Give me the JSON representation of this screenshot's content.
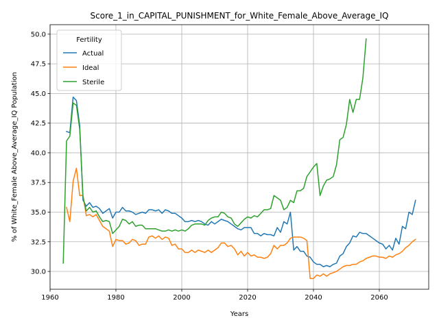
{
  "chart_data": {
    "type": "line",
    "title": "Score_1_in_CAPITAL_PUNISHMENT_for_White_Female_Above_Average_IQ",
    "xlabel": "Years",
    "ylabel": "% of White_Female Above_Average_IQ Population",
    "xlim": [
      1960,
      2075
    ],
    "ylim": [
      28.5,
      50.8
    ],
    "xticks": [
      1960,
      1980,
      2000,
      2020,
      2040,
      2060
    ],
    "yticks": [
      30.0,
      32.5,
      35.0,
      37.5,
      40.0,
      42.5,
      45.0,
      47.5,
      50.0
    ],
    "grid": true,
    "legend": {
      "title": "Fertility",
      "placement": "upper-left"
    },
    "series": [
      {
        "name": "Actual",
        "color": "#1f77b4",
        "points": [
          [
            1965,
            41.8
          ],
          [
            1966,
            41.7
          ],
          [
            1967,
            44.7
          ],
          [
            1968,
            44.4
          ],
          [
            1969,
            42.3
          ],
          [
            1970,
            36.0
          ],
          [
            1971,
            35.5
          ],
          [
            1972,
            35.8
          ],
          [
            1973,
            35.4
          ],
          [
            1974,
            35.5
          ],
          [
            1975,
            35.3
          ],
          [
            1976,
            34.9
          ],
          [
            1977,
            35.1
          ],
          [
            1978,
            35.3
          ],
          [
            1979,
            34.5
          ],
          [
            1980,
            35.0
          ],
          [
            1981,
            35.0
          ],
          [
            1982,
            35.4
          ],
          [
            1983,
            35.1
          ],
          [
            1984,
            35.1
          ],
          [
            1985,
            35.0
          ],
          [
            1986,
            34.8
          ],
          [
            1987,
            34.9
          ],
          [
            1988,
            35.0
          ],
          [
            1989,
            34.9
          ],
          [
            1990,
            35.2
          ],
          [
            1991,
            35.2
          ],
          [
            1992,
            35.1
          ],
          [
            1993,
            35.2
          ],
          [
            1994,
            34.9
          ],
          [
            1995,
            35.2
          ],
          [
            1996,
            35.1
          ],
          [
            1997,
            34.9
          ],
          [
            1998,
            34.9
          ],
          [
            1999,
            34.7
          ],
          [
            2000,
            34.5
          ],
          [
            2001,
            34.2
          ],
          [
            2002,
            34.2
          ],
          [
            2003,
            34.3
          ],
          [
            2004,
            34.2
          ],
          [
            2005,
            34.3
          ],
          [
            2006,
            34.2
          ],
          [
            2007,
            34.0
          ],
          [
            2008,
            33.9
          ],
          [
            2009,
            34.2
          ],
          [
            2010,
            34.0
          ],
          [
            2011,
            34.2
          ],
          [
            2012,
            34.4
          ],
          [
            2013,
            34.3
          ],
          [
            2014,
            34.2
          ],
          [
            2015,
            34.0
          ],
          [
            2016,
            33.8
          ],
          [
            2017,
            33.6
          ],
          [
            2018,
            33.5
          ],
          [
            2019,
            33.7
          ],
          [
            2020,
            33.7
          ],
          [
            2021,
            33.7
          ],
          [
            2022,
            33.2
          ],
          [
            2023,
            33.2
          ],
          [
            2024,
            33.0
          ],
          [
            2025,
            33.2
          ],
          [
            2026,
            33.1
          ],
          [
            2027,
            33.1
          ],
          [
            2028,
            33.0
          ],
          [
            2029,
            33.7
          ],
          [
            2030,
            33.3
          ],
          [
            2031,
            34.2
          ],
          [
            2032,
            34.0
          ],
          [
            2033,
            35.0
          ],
          [
            2034,
            31.8
          ],
          [
            2035,
            32.1
          ],
          [
            2036,
            31.7
          ],
          [
            2037,
            31.7
          ],
          [
            2038,
            31.3
          ],
          [
            2039,
            31.2
          ],
          [
            2040,
            30.8
          ],
          [
            2041,
            30.6
          ],
          [
            2042,
            30.6
          ],
          [
            2043,
            30.4
          ],
          [
            2044,
            30.5
          ],
          [
            2045,
            30.4
          ],
          [
            2046,
            30.6
          ],
          [
            2047,
            30.7
          ],
          [
            2048,
            31.3
          ],
          [
            2049,
            31.5
          ],
          [
            2050,
            32.1
          ],
          [
            2051,
            32.4
          ],
          [
            2052,
            33.0
          ],
          [
            2053,
            32.9
          ],
          [
            2054,
            33.3
          ],
          [
            2055,
            33.2
          ],
          [
            2056,
            33.2
          ],
          [
            2057,
            33.0
          ],
          [
            2058,
            32.8
          ],
          [
            2059,
            32.6
          ],
          [
            2060,
            32.4
          ],
          [
            2061,
            32.3
          ],
          [
            2062,
            31.9
          ],
          [
            2063,
            32.2
          ],
          [
            2064,
            31.8
          ],
          [
            2065,
            32.8
          ],
          [
            2066,
            32.3
          ],
          [
            2067,
            33.8
          ],
          [
            2068,
            33.6
          ],
          [
            2069,
            35.0
          ],
          [
            2070,
            34.8
          ],
          [
            2071,
            36.0
          ]
        ]
      },
      {
        "name": "Ideal",
        "color": "#ff7f0e",
        "points": [
          [
            1965,
            35.4
          ],
          [
            1966,
            34.2
          ],
          [
            1967,
            37.6
          ],
          [
            1968,
            38.7
          ],
          [
            1969,
            36.4
          ],
          [
            1970,
            36.4
          ],
          [
            1971,
            34.7
          ],
          [
            1972,
            34.8
          ],
          [
            1973,
            34.6
          ],
          [
            1974,
            34.8
          ],
          [
            1975,
            34.3
          ],
          [
            1976,
            33.8
          ],
          [
            1977,
            33.6
          ],
          [
            1978,
            33.4
          ],
          [
            1979,
            32.1
          ],
          [
            1980,
            32.7
          ],
          [
            1981,
            32.6
          ],
          [
            1982,
            32.6
          ],
          [
            1983,
            32.3
          ],
          [
            1984,
            32.4
          ],
          [
            1985,
            32.7
          ],
          [
            1986,
            32.6
          ],
          [
            1987,
            32.2
          ],
          [
            1988,
            32.3
          ],
          [
            1989,
            32.3
          ],
          [
            1990,
            32.9
          ],
          [
            1991,
            33.0
          ],
          [
            1992,
            32.8
          ],
          [
            1993,
            33.0
          ],
          [
            1994,
            32.7
          ],
          [
            1995,
            32.9
          ],
          [
            1996,
            32.8
          ],
          [
            1997,
            32.2
          ],
          [
            1998,
            32.3
          ],
          [
            1999,
            31.9
          ],
          [
            2000,
            31.9
          ],
          [
            2001,
            31.6
          ],
          [
            2002,
            31.6
          ],
          [
            2003,
            31.8
          ],
          [
            2004,
            31.6
          ],
          [
            2005,
            31.8
          ],
          [
            2006,
            31.7
          ],
          [
            2007,
            31.6
          ],
          [
            2008,
            31.8
          ],
          [
            2009,
            31.6
          ],
          [
            2010,
            31.8
          ],
          [
            2011,
            32.0
          ],
          [
            2012,
            32.4
          ],
          [
            2013,
            32.4
          ],
          [
            2014,
            32.1
          ],
          [
            2015,
            32.2
          ],
          [
            2016,
            31.9
          ],
          [
            2017,
            31.4
          ],
          [
            2018,
            31.7
          ],
          [
            2019,
            31.3
          ],
          [
            2020,
            31.6
          ],
          [
            2021,
            31.3
          ],
          [
            2022,
            31.4
          ],
          [
            2023,
            31.2
          ],
          [
            2024,
            31.2
          ],
          [
            2025,
            31.1
          ],
          [
            2026,
            31.2
          ],
          [
            2027,
            31.5
          ],
          [
            2028,
            32.2
          ],
          [
            2029,
            31.9
          ],
          [
            2030,
            32.2
          ],
          [
            2031,
            32.2
          ],
          [
            2032,
            32.4
          ],
          [
            2033,
            32.8
          ],
          [
            2034,
            32.9
          ],
          [
            2035,
            32.9
          ],
          [
            2036,
            32.9
          ],
          [
            2037,
            32.8
          ],
          [
            2038,
            32.6
          ],
          [
            2039,
            29.4
          ],
          [
            2040,
            29.4
          ],
          [
            2041,
            29.7
          ],
          [
            2042,
            29.6
          ],
          [
            2043,
            29.8
          ],
          [
            2044,
            29.6
          ],
          [
            2045,
            29.8
          ],
          [
            2046,
            29.9
          ],
          [
            2047,
            30.0
          ],
          [
            2048,
            30.2
          ],
          [
            2049,
            30.4
          ],
          [
            2050,
            30.5
          ],
          [
            2051,
            30.5
          ],
          [
            2052,
            30.6
          ],
          [
            2053,
            30.6
          ],
          [
            2054,
            30.8
          ],
          [
            2055,
            30.9
          ],
          [
            2056,
            31.1
          ],
          [
            2057,
            31.2
          ],
          [
            2058,
            31.3
          ],
          [
            2059,
            31.3
          ],
          [
            2060,
            31.2
          ],
          [
            2061,
            31.2
          ],
          [
            2062,
            31.1
          ],
          [
            2063,
            31.3
          ],
          [
            2064,
            31.2
          ],
          [
            2065,
            31.4
          ],
          [
            2066,
            31.5
          ],
          [
            2067,
            31.7
          ],
          [
            2068,
            32.0
          ],
          [
            2069,
            32.2
          ],
          [
            2070,
            32.5
          ],
          [
            2071,
            32.7
          ]
        ]
      },
      {
        "name": "Sterile",
        "color": "#2ca02c",
        "points": [
          [
            1964,
            30.7
          ],
          [
            1965,
            41.0
          ],
          [
            1966,
            41.4
          ],
          [
            1967,
            44.2
          ],
          [
            1968,
            44.0
          ],
          [
            1969,
            42.0
          ],
          [
            1970,
            36.3
          ],
          [
            1971,
            35.1
          ],
          [
            1972,
            35.4
          ],
          [
            1973,
            35.0
          ],
          [
            1974,
            35.1
          ],
          [
            1975,
            34.6
          ],
          [
            1976,
            34.2
          ],
          [
            1977,
            34.3
          ],
          [
            1978,
            34.2
          ],
          [
            1979,
            33.2
          ],
          [
            1980,
            33.5
          ],
          [
            1981,
            33.8
          ],
          [
            1982,
            34.4
          ],
          [
            1983,
            34.3
          ],
          [
            1984,
            34.0
          ],
          [
            1985,
            34.2
          ],
          [
            1986,
            33.8
          ],
          [
            1987,
            33.9
          ],
          [
            1988,
            33.9
          ],
          [
            1989,
            33.6
          ],
          [
            1990,
            33.6
          ],
          [
            1991,
            33.6
          ],
          [
            1992,
            33.6
          ],
          [
            1993,
            33.5
          ],
          [
            1994,
            33.4
          ],
          [
            1995,
            33.4
          ],
          [
            1996,
            33.5
          ],
          [
            1997,
            33.4
          ],
          [
            1998,
            33.5
          ],
          [
            1999,
            33.4
          ],
          [
            2000,
            33.5
          ],
          [
            2001,
            33.4
          ],
          [
            2002,
            33.6
          ],
          [
            2003,
            33.9
          ],
          [
            2004,
            34.0
          ],
          [
            2005,
            34.0
          ],
          [
            2006,
            34.0
          ],
          [
            2007,
            33.9
          ],
          [
            2008,
            34.3
          ],
          [
            2009,
            34.5
          ],
          [
            2010,
            34.6
          ],
          [
            2011,
            34.6
          ],
          [
            2012,
            35.0
          ],
          [
            2013,
            34.9
          ],
          [
            2014,
            34.6
          ],
          [
            2015,
            34.5
          ],
          [
            2016,
            34.0
          ],
          [
            2017,
            33.8
          ],
          [
            2018,
            34.1
          ],
          [
            2019,
            34.4
          ],
          [
            2020,
            34.6
          ],
          [
            2021,
            34.5
          ],
          [
            2022,
            34.7
          ],
          [
            2023,
            34.6
          ],
          [
            2024,
            34.9
          ],
          [
            2025,
            35.2
          ],
          [
            2026,
            35.2
          ],
          [
            2027,
            35.3
          ],
          [
            2028,
            36.4
          ],
          [
            2029,
            36.2
          ],
          [
            2030,
            36.0
          ],
          [
            2031,
            35.2
          ],
          [
            2032,
            35.4
          ],
          [
            2033,
            36.0
          ],
          [
            2034,
            35.8
          ],
          [
            2035,
            36.8
          ],
          [
            2036,
            36.8
          ],
          [
            2037,
            37.0
          ],
          [
            2038,
            38.0
          ],
          [
            2039,
            38.4
          ],
          [
            2040,
            38.8
          ],
          [
            2041,
            39.1
          ],
          [
            2042,
            36.4
          ],
          [
            2043,
            37.2
          ],
          [
            2044,
            37.7
          ],
          [
            2045,
            37.8
          ],
          [
            2046,
            38.0
          ],
          [
            2047,
            39.0
          ],
          [
            2048,
            41.1
          ],
          [
            2049,
            41.3
          ],
          [
            2050,
            42.4
          ],
          [
            2051,
            44.5
          ],
          [
            2052,
            43.4
          ],
          [
            2053,
            44.5
          ],
          [
            2054,
            44.5
          ],
          [
            2055,
            46.3
          ],
          [
            2056,
            49.6
          ]
        ]
      }
    ]
  }
}
